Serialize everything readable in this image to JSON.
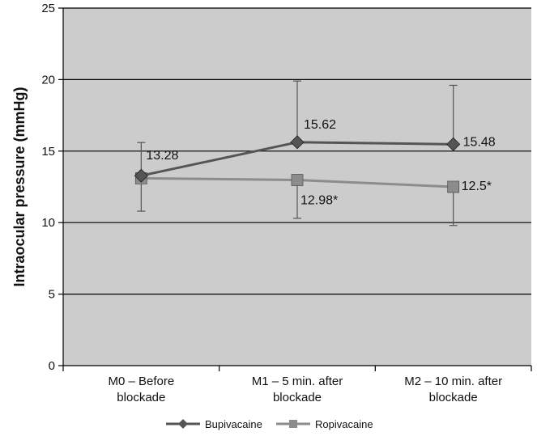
{
  "chart_data": {
    "type": "line",
    "title": "",
    "xlabel": "",
    "ylabel": "Intraocular pressure (mmHg)",
    "ylim": [
      0,
      25
    ],
    "yticks": [
      0,
      5,
      10,
      15,
      20,
      25
    ],
    "grid": true,
    "legend_position": "bottom",
    "categories": [
      [
        "M0 – Before",
        "blockade"
      ],
      [
        "M1 – 5 min. after",
        "blockade"
      ],
      [
        "M2 – 10 min. after",
        "blockade"
      ]
    ],
    "series": [
      {
        "name": "Bupivacaine",
        "marker": "diamond",
        "color": "#555555",
        "values": [
          13.28,
          15.62,
          15.48
        ],
        "error_upper": [
          15.6,
          19.9,
          19.6
        ],
        "labels": [
          "13.28",
          "15.62",
          "15.48"
        ]
      },
      {
        "name": "Ropivacaine",
        "marker": "square",
        "color": "#8c8c8c",
        "values": [
          13.1,
          12.98,
          12.5
        ],
        "error_lower": [
          10.8,
          10.3,
          9.8
        ],
        "labels": [
          "",
          "12.98*",
          "12.5*"
        ]
      }
    ],
    "colors": {
      "plot_bg": "#cccccc",
      "gridline": "#000000",
      "error_bar": "#555555"
    }
  }
}
